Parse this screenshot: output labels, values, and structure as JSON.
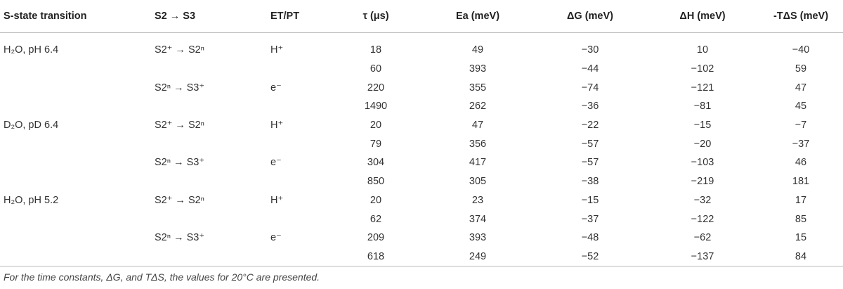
{
  "table": {
    "header": [
      "S-state transition",
      "S2 → S3",
      "ET/PT",
      "τ (μs)",
      "Ea (meV)",
      "ΔG (meV)",
      "ΔH (meV)",
      "-TΔS (meV)"
    ],
    "rows": [
      [
        "H₂O, pH 6.4",
        "S2⁺ → S2ⁿ",
        "H⁺",
        "18",
        "49",
        "−30",
        "10",
        "−40"
      ],
      [
        null,
        null,
        null,
        "60",
        "393",
        "−44",
        "−102",
        "59"
      ],
      [
        null,
        "S2ⁿ → S3⁺",
        "e⁻",
        "220",
        "355",
        "−74",
        "−121",
        "47"
      ],
      [
        null,
        null,
        null,
        "1490",
        "262",
        "−36",
        "−81",
        "45"
      ],
      [
        "D₂O, pD 6.4",
        "S2⁺ → S2ⁿ",
        "H⁺",
        "20",
        "47",
        "−22",
        "−15",
        "−7"
      ],
      [
        null,
        null,
        null,
        "79",
        "356",
        "−57",
        "−20",
        "−37"
      ],
      [
        null,
        "S2ⁿ → S3⁺",
        "e⁻",
        "304",
        "417",
        "−57",
        "−103",
        "46"
      ],
      [
        null,
        null,
        null,
        "850",
        "305",
        "−38",
        "−219",
        "181"
      ],
      [
        "H₂O, pH 5.2",
        "S2⁺ → S2ⁿ",
        "H⁺",
        "20",
        "23",
        "−15",
        "−32",
        "17"
      ],
      [
        null,
        null,
        null,
        "62",
        "374",
        "−37",
        "−122",
        "85"
      ],
      [
        null,
        "S2ⁿ → S3⁺",
        "e⁻",
        "209",
        "393",
        "−48",
        "−62",
        "15"
      ],
      [
        null,
        null,
        null,
        "618",
        "249",
        "−52",
        "−137",
        "84"
      ]
    ],
    "footnote": "For the time constants, ΔG, and TΔS, the values for 20°C are presented."
  }
}
